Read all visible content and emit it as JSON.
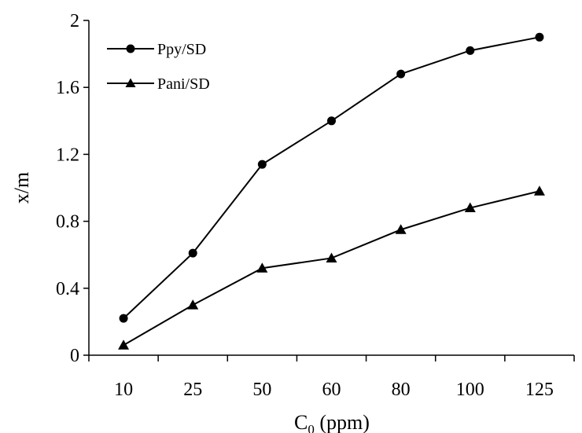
{
  "chart_data": {
    "type": "line",
    "categories": [
      "10",
      "25",
      "50",
      "60",
      "80",
      "100",
      "125"
    ],
    "series": [
      {
        "name": "Ppy/SD",
        "marker": "circle",
        "values": [
          0.22,
          0.61,
          1.14,
          1.4,
          1.68,
          1.82,
          1.9
        ]
      },
      {
        "name": "Pani/SD",
        "marker": "triangle",
        "values": [
          0.06,
          0.3,
          0.52,
          0.58,
          0.75,
          0.88,
          0.98
        ]
      }
    ],
    "xlabel_main": "C",
    "xlabel_sub": "0",
    "xlabel_unit": " (ppm)",
    "ylabel": "x/m",
    "ylim": [
      0,
      2
    ],
    "yticks": [
      "0",
      "0.4",
      "0.8",
      "1.2",
      "1.6",
      "2"
    ],
    "legend_position": "top-left",
    "grid": false,
    "colors": {
      "line": "#000000",
      "marker": "#000000"
    }
  }
}
